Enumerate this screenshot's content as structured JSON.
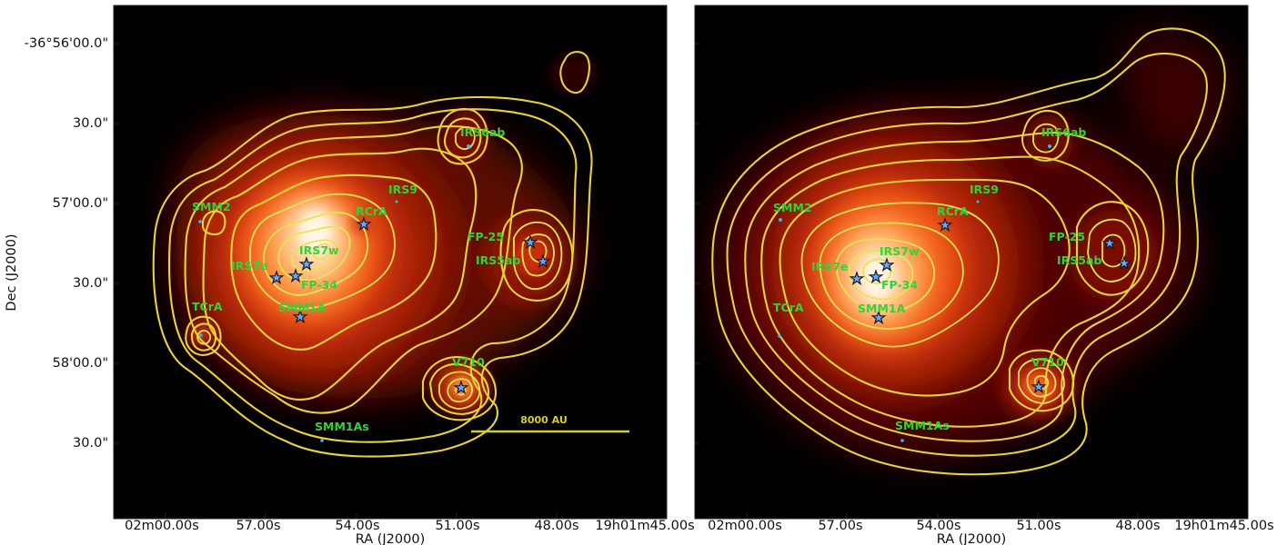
{
  "axes": {
    "y_label": "Dec (J2000)",
    "x_label": "RA (J2000)",
    "y_ticks": [
      "-36°56'00.0\"",
      "30.0\"",
      "57'00.0\"",
      "30.0\"",
      "58'00.0\"",
      "30.0\""
    ],
    "x_ticks": [
      "02m00.00s",
      "57.00s",
      "54.00s",
      "51.00s",
      "48.00s",
      "19h01m45.00s"
    ]
  },
  "scale_bar": {
    "label": "8000 AU"
  },
  "sources": [
    "SMM2",
    "RCrA",
    "IRS9",
    "IRS6ab",
    "FP-25",
    "IRS5ab",
    "IRS7w",
    "IRS7e",
    "FP-34",
    "SMM1A",
    "TCrA",
    "V710",
    "SMM1As"
  ],
  "colors": {
    "contour": "#e8d23a",
    "label": "#30d43a",
    "star": "#6aa8ff",
    "background": "#000000"
  }
}
